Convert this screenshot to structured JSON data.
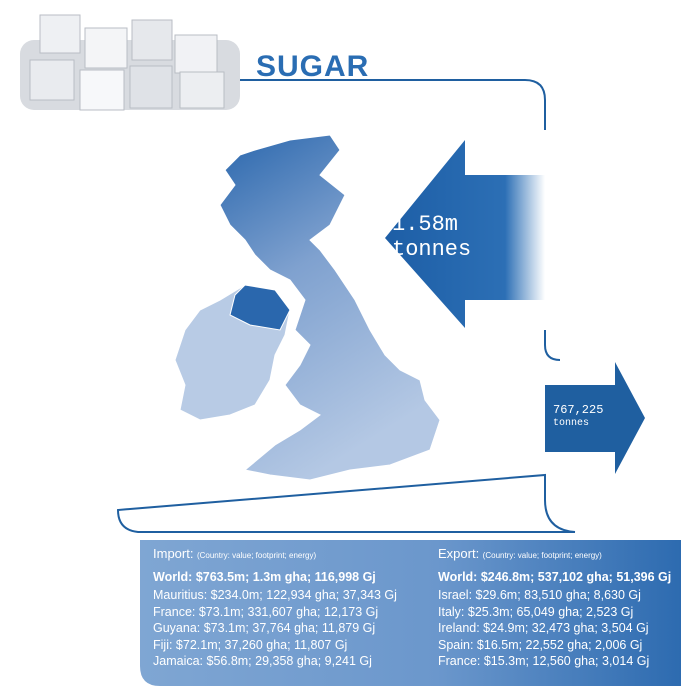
{
  "title": "SUGAR",
  "import_arrow": {
    "value": "1.58m",
    "unit": "tonnes"
  },
  "export_arrow": {
    "value": "767,225",
    "unit": "tonnes"
  },
  "import": {
    "heading": "Import:",
    "note": "(Country: value; footprint; energy)",
    "world": "World: $763.5m; 1.3m gha; 116,998 Gj",
    "rows": [
      "Mauritius: $234.0m; 122,934 gha; 37,343 Gj",
      "France: $73.1m; 331,607 gha; 12,173 Gj",
      "Guyana: $73.1m; 37,764 gha; 11,879 Gj",
      "Fiji: $72.1m; 37,260 gha; 11,807 Gj",
      "Jamaica: $56.8m; 29,358 gha; 9,241 Gj"
    ]
  },
  "export": {
    "heading": "Export:",
    "note": "(Country: value; footprint; energy)",
    "world": "World: $246.8m; 537,102 gha; 51,396 Gj",
    "rows": [
      "Israel: $29.6m; 83,510 gha; 8,630 Gj",
      "Italy: $25.3m; 65,049 gha; 2,523 Gj",
      "Ireland: $24.9m; 32,473 gha; 3,504 Gj",
      "Spain: $16.5m; 22,552 gha; 2,006 Gj",
      "France: $15.3m; 12,560 gha; 3,014 Gj"
    ]
  }
}
